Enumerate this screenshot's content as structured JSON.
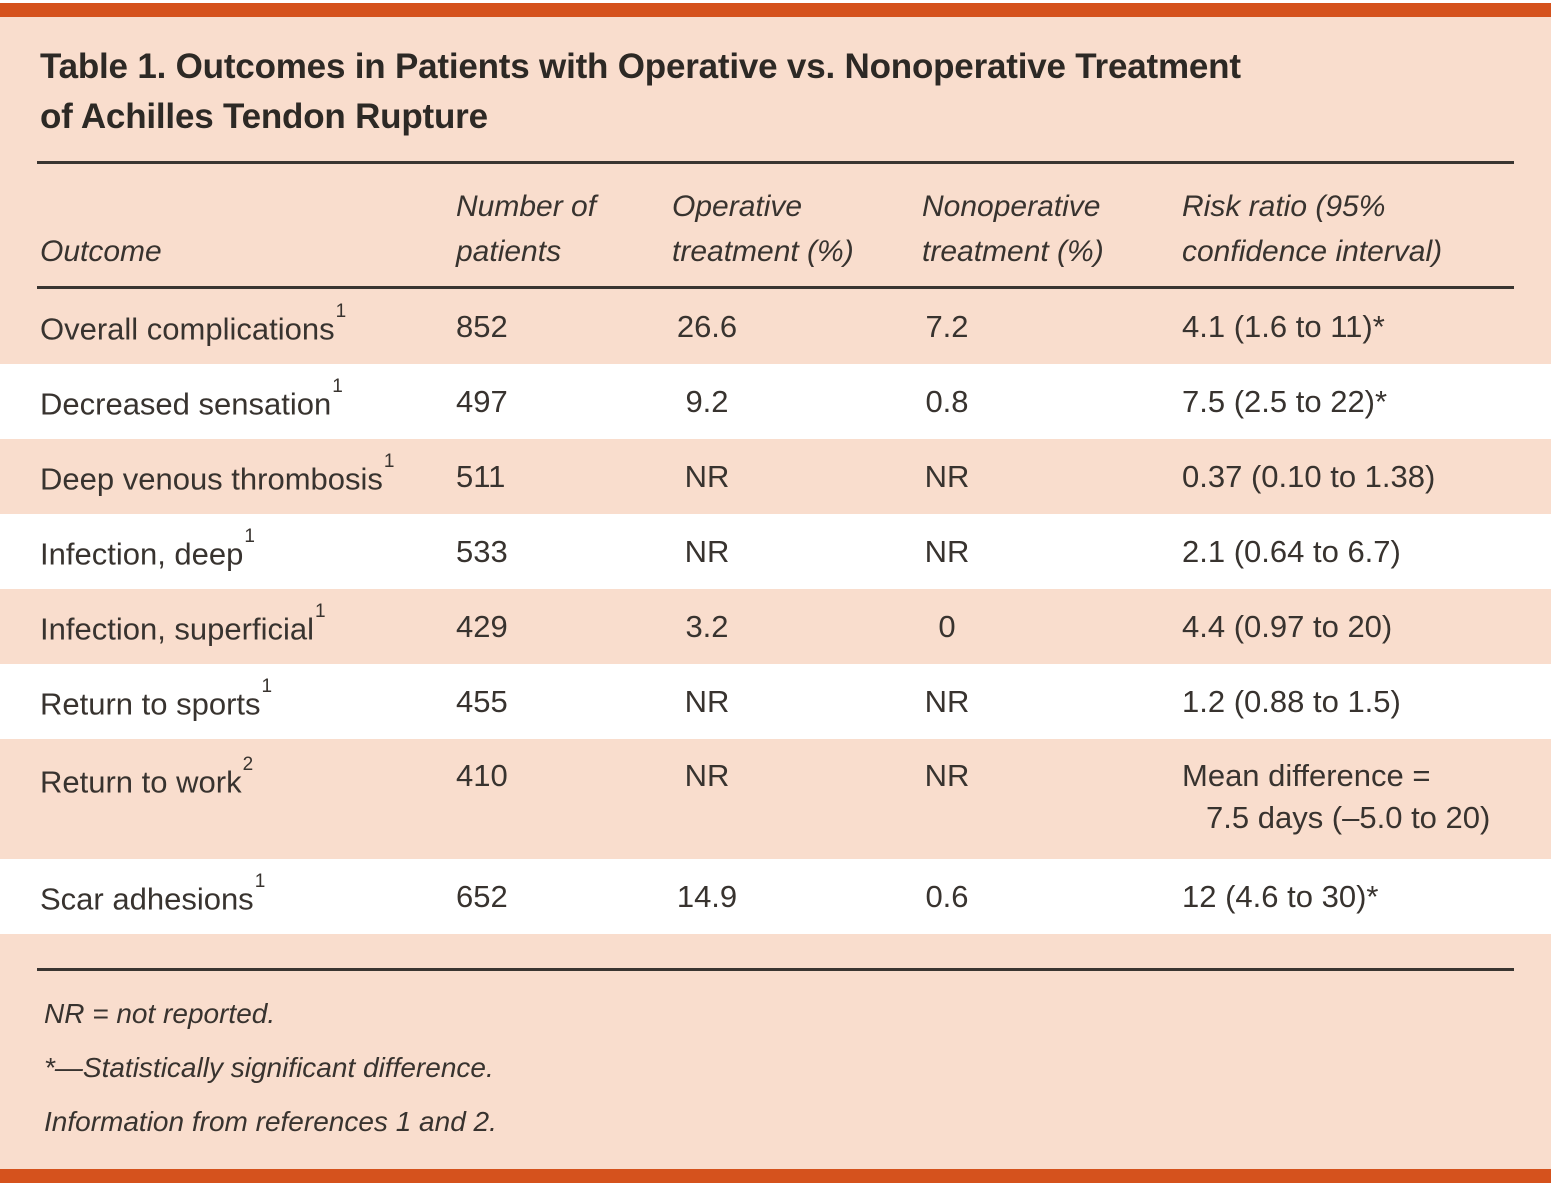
{
  "colors": {
    "accent_orange": "#d5521d",
    "page_peach": "#f9ddcd",
    "row_white": "#ffffff",
    "text_dark": "#38332f",
    "rule_dark": "#3a3531"
  },
  "title": {
    "line1": "Table 1. Outcomes in Patients with Operative vs. Nonoperative Treatment",
    "line2": "of Achilles Tendon Rupture"
  },
  "table": {
    "columns": [
      "Outcome",
      "Number of patients",
      "Operative treatment (%)",
      "Nonoperative treatment (%)",
      "Risk ratio (95% confidence interval)"
    ],
    "rows": [
      {
        "outcome": "Overall complications",
        "ref": "1",
        "patients": "852",
        "operative": "26.6",
        "nonoperative": "7.2",
        "risk": "4.1 (1.6 to 11)*"
      },
      {
        "outcome": "Decreased sensation",
        "ref": "1",
        "patients": "497",
        "operative": "9.2",
        "nonoperative": "0.8",
        "risk": "7.5 (2.5 to 22)*"
      },
      {
        "outcome": "Deep venous thrombosis",
        "ref": "1",
        "patients": "511",
        "operative": "NR",
        "nonoperative": "NR",
        "risk": "0.37 (0.10 to 1.38)"
      },
      {
        "outcome": "Infection, deep",
        "ref": "1",
        "patients": "533",
        "operative": "NR",
        "nonoperative": "NR",
        "risk": "2.1 (0.64 to 6.7)"
      },
      {
        "outcome": "Infection, superficial",
        "ref": "1",
        "patients": "429",
        "operative": "3.2",
        "nonoperative": "0",
        "risk": "4.4 (0.97 to 20)"
      },
      {
        "outcome": "Return to sports",
        "ref": "1",
        "patients": "455",
        "operative": "NR",
        "nonoperative": "NR",
        "risk": "1.2 (0.88 to 1.5)"
      },
      {
        "outcome": "Return to work",
        "ref": "2",
        "patients": "410",
        "operative": "NR",
        "nonoperative": "NR",
        "risk": "Mean difference =",
        "risk_line2": "7.5 days (–5.0 to 20)"
      },
      {
        "outcome": "Scar adhesions",
        "ref": "1",
        "patients": "652",
        "operative": "14.9",
        "nonoperative": "0.6",
        "risk": "12 (4.6 to 30)*"
      }
    ]
  },
  "footnotes": [
    "NR = not reported.",
    "*—Statistically significant difference.",
    "Information from references 1 and 2."
  ]
}
